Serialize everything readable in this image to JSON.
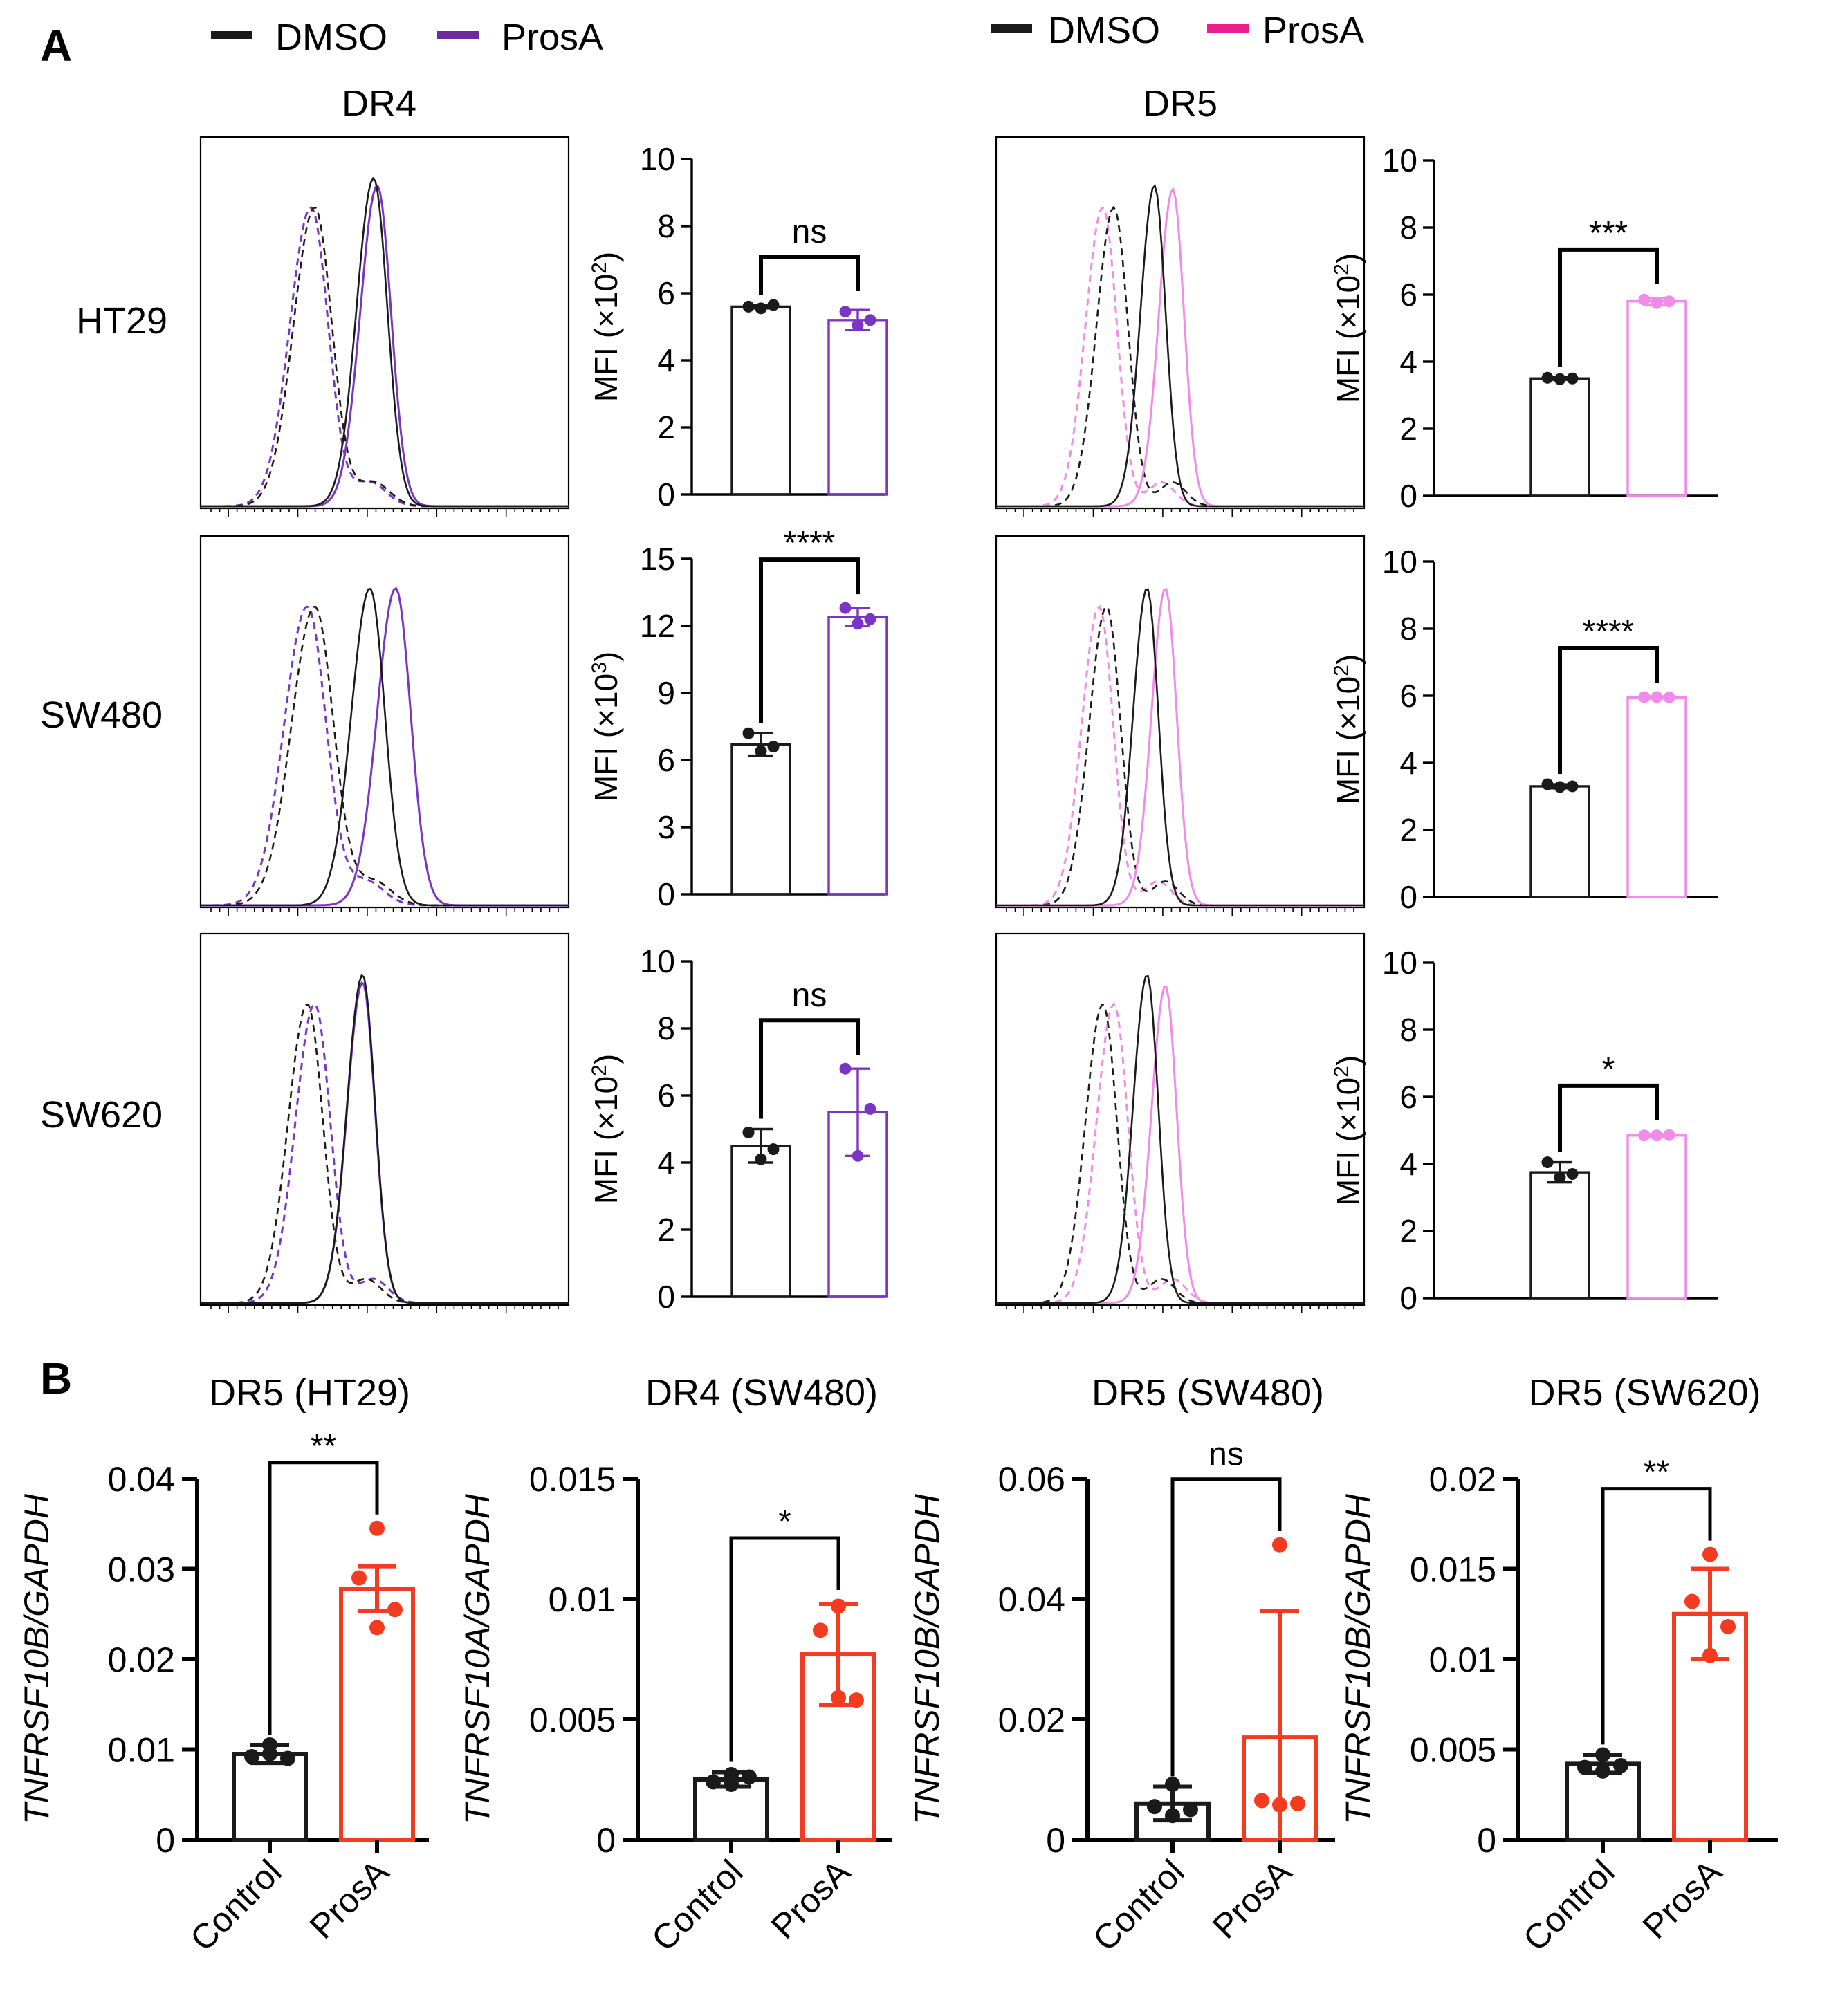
{
  "panels": {
    "A": "A",
    "B": "B"
  },
  "legend": {
    "dr4": [
      {
        "label": "DMSO",
        "color": "#1a1a1a"
      },
      {
        "label": "ProsA",
        "color": "#6a2c9c"
      }
    ],
    "dr5": [
      {
        "label": "DMSO",
        "color": "#1a1a1a"
      },
      {
        "label": "ProsA",
        "color": "#e91e8c"
      }
    ]
  },
  "column_titles": {
    "dr4": "DR4",
    "dr5": "DR5"
  },
  "row_labels": [
    "HT29",
    "SW480",
    "SW620"
  ],
  "colors": {
    "dmso": "#1a1a1a",
    "dr4_prosa": "#7b35c4",
    "dr5_prosa": "#f08ce8",
    "dr5_prosa_legend": "#e91e8c",
    "qpcr_prosa": "#f23b1f"
  },
  "chart_data": [
    {
      "id": "A-DR4-HT29",
      "type": "bar",
      "categories": [
        "DMSO",
        "ProsA"
      ],
      "values": [
        5.6,
        5.2
      ],
      "errors": [
        0.05,
        0.3
      ],
      "points": [
        [
          5.55,
          5.6,
          5.65
        ],
        [
          5.05,
          5.45,
          5.2
        ]
      ],
      "ylim": [
        0,
        10
      ],
      "ticks": [
        0,
        2,
        4,
        6,
        8,
        10
      ],
      "ylabel_pre": "MFI (×10",
      "ylabel_sup": "2",
      "ylabel_post": ")",
      "significance": "ns",
      "prosa_color": "#7b35c4"
    },
    {
      "id": "A-DR5-HT29",
      "type": "bar",
      "categories": [
        "DMSO",
        "ProsA"
      ],
      "values": [
        3.5,
        5.8
      ],
      "errors": [
        0.04,
        0.1
      ],
      "points": [
        [
          3.48,
          3.52,
          3.5
        ],
        [
          5.75,
          5.85,
          5.8
        ]
      ],
      "ylim": [
        0,
        10
      ],
      "ticks": [
        0,
        2,
        4,
        6,
        8,
        10
      ],
      "ylabel_pre": "MFI (×10",
      "ylabel_sup": "2",
      "ylabel_post": ")",
      "significance": "***",
      "prosa_color": "#f08ce8"
    },
    {
      "id": "A-DR4-SW480",
      "type": "bar",
      "categories": [
        "DMSO",
        "ProsA"
      ],
      "values": [
        6.7,
        12.4
      ],
      "errors": [
        0.5,
        0.4
      ],
      "points": [
        [
          6.4,
          7.2,
          6.6
        ],
        [
          12.1,
          12.8,
          12.3
        ]
      ],
      "ylim": [
        0,
        15
      ],
      "ticks": [
        0,
        3,
        6,
        9,
        12,
        15
      ],
      "ylabel_pre": "MFI (×10",
      "ylabel_sup": "3",
      "ylabel_post": ")",
      "significance": "****",
      "prosa_color": "#7b35c4"
    },
    {
      "id": "A-DR5-SW480",
      "type": "bar",
      "categories": [
        "DMSO",
        "ProsA"
      ],
      "values": [
        3.3,
        5.95
      ],
      "errors": [
        0.06,
        0.03
      ],
      "points": [
        [
          3.28,
          3.36,
          3.3
        ],
        [
          5.96,
          5.96,
          5.95
        ]
      ],
      "ylim": [
        0,
        10
      ],
      "ticks": [
        0,
        2,
        4,
        6,
        8,
        10
      ],
      "ylabel_pre": "MFI (×10",
      "ylabel_sup": "2",
      "ylabel_post": ")",
      "significance": "****",
      "prosa_color": "#f08ce8"
    },
    {
      "id": "A-DR4-SW620",
      "type": "bar",
      "categories": [
        "DMSO",
        "ProsA"
      ],
      "values": [
        4.5,
        5.5
      ],
      "errors": [
        0.5,
        1.3
      ],
      "points": [
        [
          4.1,
          4.9,
          4.4
        ],
        [
          4.2,
          6.8,
          5.6
        ]
      ],
      "ylim": [
        0,
        10
      ],
      "ticks": [
        0,
        2,
        4,
        6,
        8,
        10
      ],
      "ylabel_pre": "MFI (×10",
      "ylabel_sup": "2",
      "ylabel_post": ")",
      "significance": "ns",
      "prosa_color": "#7b35c4"
    },
    {
      "id": "A-DR5-SW620",
      "type": "bar",
      "categories": [
        "DMSO",
        "ProsA"
      ],
      "values": [
        3.75,
        4.85
      ],
      "errors": [
        0.3,
        0.04
      ],
      "points": [
        [
          3.6,
          4.05,
          3.7
        ],
        [
          4.85,
          4.85,
          4.86
        ]
      ],
      "ylim": [
        0,
        10
      ],
      "ticks": [
        0,
        2,
        4,
        6,
        8,
        10
      ],
      "ylabel_pre": "MFI (×10",
      "ylabel_sup": "2",
      "ylabel_post": ")",
      "significance": "*",
      "prosa_color": "#f08ce8"
    },
    {
      "id": "B-DR5-HT29",
      "type": "bar",
      "title": "DR5 (HT29)",
      "categories": [
        "Control",
        "ProsA"
      ],
      "values": [
        0.0095,
        0.0278
      ],
      "errors": [
        0.001,
        0.0025
      ],
      "points": [
        [
          0.0105,
          0.0092,
          0.009,
          0.0095
        ],
        [
          0.0345,
          0.029,
          0.0255,
          0.0235
        ]
      ],
      "ylim": [
        0,
        0.04
      ],
      "ticks": [
        0,
        0.01,
        0.02,
        0.03,
        0.04
      ],
      "tick_labels": [
        "0",
        "0.01",
        "0.02",
        "0.03",
        "0.04"
      ],
      "ylabel": "TNFRSF10B/GAPDH",
      "significance": "**"
    },
    {
      "id": "B-DR4-SW480",
      "type": "bar",
      "title": "DR4 (SW480)",
      "categories": [
        "Control",
        "ProsA"
      ],
      "values": [
        0.0025,
        0.0077
      ],
      "errors": [
        0.0003,
        0.0021
      ],
      "points": [
        [
          0.0027,
          0.0024,
          0.0026,
          0.0023
        ],
        [
          0.0097,
          0.0087,
          0.0058,
          0.0059
        ]
      ],
      "ylim": [
        0,
        0.015
      ],
      "ticks": [
        0,
        0.005,
        0.01,
        0.015
      ],
      "tick_labels": [
        "0",
        "0.005",
        "0.01",
        "0.015"
      ],
      "ylabel": "TNFRSF10A/GAPDH",
      "significance": "*"
    },
    {
      "id": "B-DR5-SW480",
      "type": "bar",
      "title": "DR5 (SW480)",
      "categories": [
        "Control",
        "ProsA"
      ],
      "values": [
        0.006,
        0.017
      ],
      "errors": [
        0.0028,
        0.021
      ],
      "points": [
        [
          0.0092,
          0.0055,
          0.005,
          0.004
        ],
        [
          0.049,
          0.0065,
          0.006,
          0.0058
        ]
      ],
      "ylim": [
        0,
        0.06
      ],
      "ticks": [
        0,
        0.02,
        0.04,
        0.06
      ],
      "tick_labels": [
        "0",
        "0.02",
        "0.04",
        "0.06"
      ],
      "ylabel": "TNFRSF10B/GAPDH",
      "significance": "ns"
    },
    {
      "id": "B-DR5-SW620",
      "type": "bar",
      "title": "DR5 (SW620)",
      "categories": [
        "Control",
        "ProsA"
      ],
      "values": [
        0.0042,
        0.0125
      ],
      "errors": [
        0.0005,
        0.0025
      ],
      "points": [
        [
          0.0047,
          0.004,
          0.0041,
          0.0038
        ],
        [
          0.0158,
          0.0132,
          0.0118,
          0.0102
        ]
      ],
      "ylim": [
        0,
        0.02
      ],
      "ticks": [
        0,
        0.005,
        0.01,
        0.015,
        0.02
      ],
      "tick_labels": [
        "0",
        "0.005",
        "0.01",
        "0.015",
        "0.02"
      ],
      "ylabel": "TNFRSF10B/GAPDH",
      "significance": "**"
    }
  ],
  "histograms": [
    {
      "id": "H-DR4-HT29",
      "prosa_color": "#7b35c4",
      "iso_dmso": 0.31,
      "iso_prosa": 0.3,
      "stain_dmso": 0.47,
      "stain_prosa": 0.48,
      "stain_height_dmso": 0.9,
      "stain_height_prosa": 0.88,
      "width": 0.055
    },
    {
      "id": "H-DR5-HT29",
      "prosa_color": "#f08ce8",
      "iso_dmso": 0.32,
      "iso_prosa": 0.29,
      "stain_dmso": 0.43,
      "stain_prosa": 0.48,
      "stain_height_dmso": 0.88,
      "stain_height_prosa": 0.87,
      "width": 0.045
    },
    {
      "id": "H-DR4-SW480",
      "prosa_color": "#7b35c4",
      "iso_dmso": 0.31,
      "iso_prosa": 0.29,
      "stain_dmso": 0.46,
      "stain_prosa": 0.53,
      "stain_height_dmso": 0.87,
      "stain_height_prosa": 0.87,
      "width": 0.06
    },
    {
      "id": "H-DR5-SW480",
      "prosa_color": "#f08ce8",
      "iso_dmso": 0.3,
      "iso_prosa": 0.28,
      "stain_dmso": 0.41,
      "stain_prosa": 0.46,
      "stain_height_dmso": 0.87,
      "stain_height_prosa": 0.87,
      "width": 0.045
    },
    {
      "id": "H-DR4-SW620",
      "prosa_color": "#7b35c4",
      "iso_dmso": 0.29,
      "iso_prosa": 0.31,
      "stain_dmso": 0.44,
      "stain_prosa": 0.44,
      "stain_height_dmso": 0.9,
      "stain_height_prosa": 0.88,
      "width": 0.05
    },
    {
      "id": "H-DR5-SW620",
      "prosa_color": "#f08ce8",
      "iso_dmso": 0.29,
      "iso_prosa": 0.32,
      "stain_dmso": 0.41,
      "stain_prosa": 0.46,
      "stain_height_dmso": 0.9,
      "stain_height_prosa": 0.87,
      "width": 0.045
    }
  ]
}
